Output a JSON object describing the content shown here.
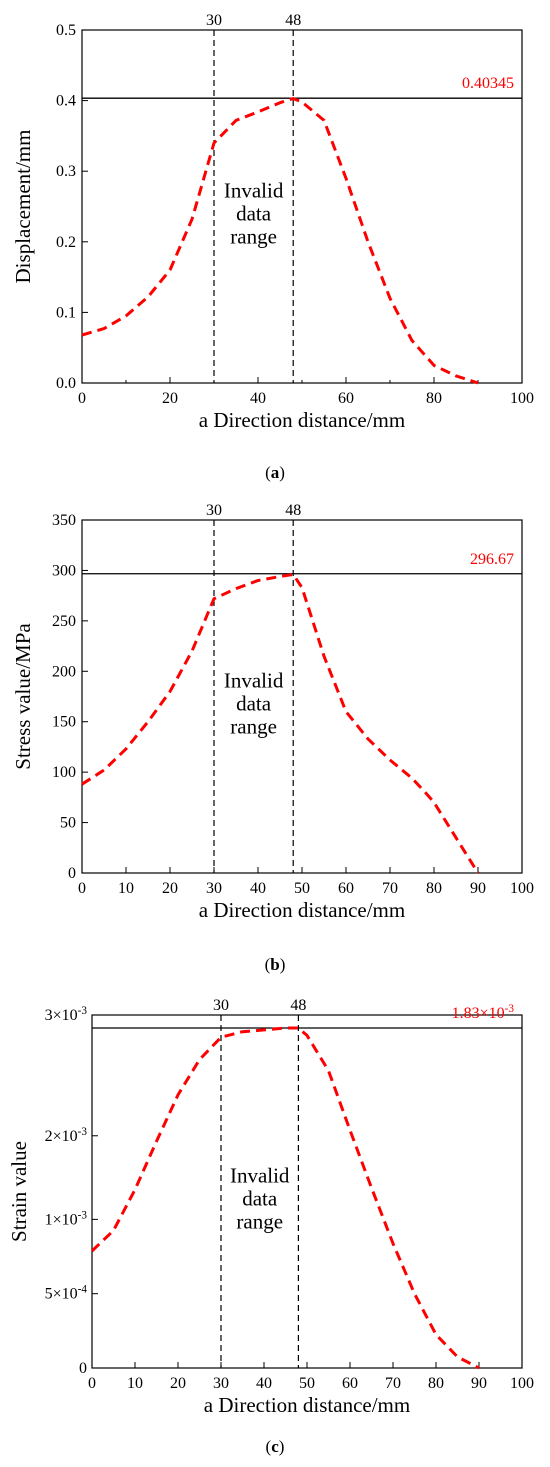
{
  "charts": [
    {
      "caption_letter": "a",
      "chart_data": {
        "type": "line",
        "xlabel": "a Direction distance/mm",
        "ylabel": "Displacement/mm",
        "xlim": [
          0,
          100
        ],
        "ylim": [
          0,
          0.5
        ],
        "xticks": [
          "0",
          "20",
          "40",
          "60",
          "80",
          "100"
        ],
        "yticks": [
          "0.0",
          "0.1",
          "0.2",
          "0.3",
          "0.4",
          "0.5"
        ],
        "vlines": [
          {
            "x": 30,
            "label": "30"
          },
          {
            "x": 48,
            "label": "48"
          }
        ],
        "hline": {
          "y": 0.40345,
          "label": "0.40345"
        },
        "annotation": [
          "Invalid",
          "data",
          "range"
        ],
        "series": [
          {
            "color": "#ff0000",
            "style": "dashed",
            "x": [
              0,
              5,
              10,
              15,
              20,
              25,
              30,
              35,
              40,
              45,
              48,
              50,
              55,
              60,
              65,
              70,
              75,
              80,
              85,
              90
            ],
            "y": [
              0.068,
              0.077,
              0.095,
              0.122,
              0.16,
              0.232,
              0.34,
              0.372,
              0.384,
              0.397,
              0.403,
              0.398,
              0.372,
              0.29,
              0.2,
              0.12,
              0.06,
              0.025,
              0.01,
              0.0
            ]
          }
        ],
        "grid": false
      }
    },
    {
      "caption_letter": "b",
      "chart_data": {
        "type": "line",
        "xlabel": "a Direction distance/mm",
        "ylabel": "Stress value/MPa",
        "xlim": [
          0,
          100
        ],
        "ylim": [
          0,
          350
        ],
        "xticks": [
          "0",
          "10",
          "20",
          "30",
          "40",
          "50",
          "60",
          "70",
          "80",
          "90",
          "100"
        ],
        "yticks": [
          "0",
          "50",
          "100",
          "150",
          "200",
          "250",
          "300",
          "350"
        ],
        "vlines": [
          {
            "x": 30,
            "label": "30"
          },
          {
            "x": 48,
            "label": "48"
          }
        ],
        "hline": {
          "y": 296.67,
          "label": "296.67"
        },
        "annotation": [
          "Invalid",
          "data",
          "range"
        ],
        "series": [
          {
            "color": "#ff0000",
            "style": "dashed",
            "x": [
              0,
              5,
              10,
              15,
              20,
              25,
              30,
              35,
              40,
              45,
              48,
              50,
              55,
              60,
              65,
              70,
              75,
              78,
              80,
              85,
              90
            ],
            "y": [
              88,
              102,
              123,
              150,
              180,
              220,
              272,
              282,
              290,
              294,
              296,
              283,
              215,
              160,
              133,
              112,
              94,
              80,
              70,
              35,
              0
            ]
          }
        ],
        "grid": false
      }
    },
    {
      "caption_letter": "c",
      "chart_data": {
        "type": "line",
        "xlabel": "a Direction distance/mm",
        "ylabel": "Strain value",
        "xlim": [
          0,
          100
        ],
        "ylim": [
          0,
          0.0019
        ],
        "xticks": [
          "0",
          "10",
          "20",
          "30",
          "40",
          "50",
          "60",
          "70",
          "80",
          "90",
          "100"
        ],
        "ytick_values": [
          0,
          0.0004,
          0.0008,
          0.00125,
          0.0019
        ],
        "yticks": [
          {
            "mant": "0",
            "exp": ""
          },
          {
            "mant": "5×10",
            "exp": "-4"
          },
          {
            "mant": "1×10",
            "exp": "-3"
          },
          {
            "mant": "2×10",
            "exp": "-3"
          },
          {
            "mant": "3×10",
            "exp": "-3"
          }
        ],
        "vlines": [
          {
            "x": 30,
            "label": "30"
          },
          {
            "x": 48,
            "label": "48"
          }
        ],
        "hline": {
          "y": 0.00183,
          "label_mant": "1.83×10",
          "label_exp": "-3"
        },
        "annotation": [
          "Invalid",
          "data",
          "range"
        ],
        "series": [
          {
            "color": "#ff0000",
            "style": "dashed",
            "x": [
              0,
              5,
              10,
              15,
              20,
              25,
              30,
              35,
              40,
              45,
              48,
              50,
              55,
              60,
              65,
              70,
              75,
              80,
              85,
              90
            ],
            "y": [
              0.00063,
              0.00074,
              0.00096,
              0.00122,
              0.00147,
              0.00166,
              0.00178,
              0.00181,
              0.00182,
              0.00183,
              0.00183,
              0.00179,
              0.0016,
              0.00128,
              0.00097,
              0.00067,
              0.0004,
              0.00018,
              6e-05,
              0.0
            ]
          }
        ],
        "grid": false
      }
    }
  ]
}
